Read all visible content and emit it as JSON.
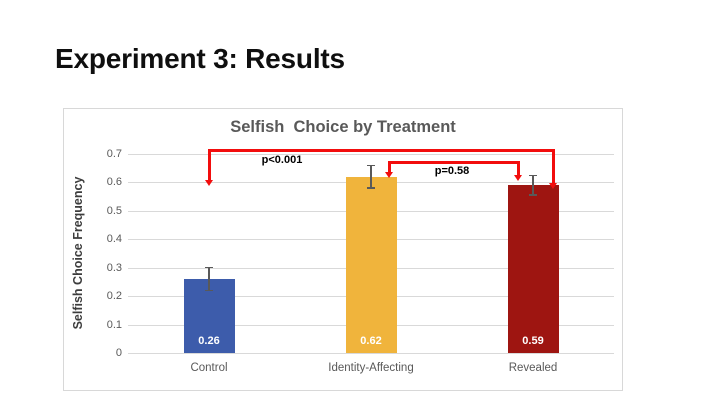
{
  "slide": {
    "title": "Experiment 3: Results"
  },
  "chart_data": {
    "type": "bar",
    "title": "Selfish  Choice by Treatment",
    "xlabel": "",
    "ylabel": "Selfish Choice Frequency",
    "categories": [
      "Control",
      "Identity-Affecting",
      "Revealed"
    ],
    "values": [
      0.26,
      0.62,
      0.59
    ],
    "value_labels": [
      "0.26",
      "0.62",
      "0.59"
    ],
    "errors": [
      0.04,
      0.04,
      0.035
    ],
    "bar_colors": [
      "#3d5cab",
      "#f0b43c",
      "#9e1511"
    ],
    "ylim": [
      0,
      0.7
    ],
    "ytick_step": 0.1,
    "ytick_labels": [
      "0",
      "0.1",
      "0.2",
      "0.3",
      "0.4",
      "0.5",
      "0.6",
      "0.7"
    ],
    "grid": true,
    "legend": "none",
    "axis_text_color": "#595959",
    "grid_color": "#d9d9d9",
    "value_label_color": "#ffffff",
    "annotation_color": "#f20d0d",
    "annotations": [
      {
        "label": "p<0.001",
        "from": "Control",
        "to": "Revealed"
      },
      {
        "label": "p=0.58",
        "from": "Identity-Affecting",
        "to": "Revealed"
      }
    ]
  }
}
